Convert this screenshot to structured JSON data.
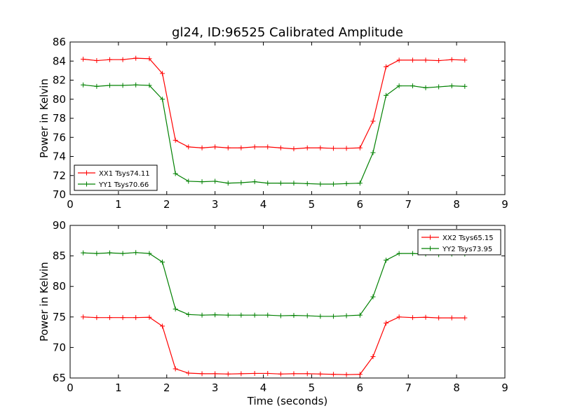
{
  "title": "gl24, ID:96525 Calibrated Amplitude",
  "colors": {
    "red_series": "#ff0000",
    "green_series": "#008000",
    "axes": "#000000"
  },
  "chart_data": [
    {
      "type": "line",
      "ylabel": "Power in Kelvin",
      "xlabel": "",
      "xlim": [
        0,
        9
      ],
      "ylim": [
        70,
        86
      ],
      "xticks": [
        0,
        1,
        2,
        3,
        4,
        5,
        6,
        7,
        8,
        9
      ],
      "yticks": [
        70,
        72,
        74,
        76,
        78,
        80,
        82,
        84,
        86
      ],
      "legend_position": "lower-left",
      "x": [
        0.27,
        0.55,
        0.82,
        1.09,
        1.36,
        1.64,
        1.91,
        2.18,
        2.45,
        2.73,
        3.0,
        3.27,
        3.54,
        3.82,
        4.09,
        4.36,
        4.63,
        4.91,
        5.18,
        5.45,
        5.72,
        6.0,
        6.27,
        6.54,
        6.81,
        7.09,
        7.36,
        7.63,
        7.9,
        8.17
      ],
      "series": [
        {
          "name": "XX1 Tsys74.11",
          "color": "#ff0000",
          "values": [
            84.2,
            84.05,
            84.15,
            84.15,
            84.3,
            84.25,
            82.7,
            75.7,
            75.0,
            74.9,
            75.0,
            74.9,
            74.9,
            75.0,
            75.0,
            74.9,
            74.8,
            74.9,
            74.9,
            74.85,
            74.85,
            74.9,
            77.7,
            83.4,
            84.1,
            84.1,
            84.1,
            84.05,
            84.15,
            84.1
          ]
        },
        {
          "name": "YY1 Tsys70.66",
          "color": "#008000",
          "values": [
            81.5,
            81.35,
            81.45,
            81.45,
            81.5,
            81.45,
            80.0,
            72.2,
            71.4,
            71.35,
            71.4,
            71.2,
            71.25,
            71.35,
            71.2,
            71.2,
            71.2,
            71.15,
            71.1,
            71.1,
            71.15,
            71.2,
            74.4,
            80.4,
            81.4,
            81.4,
            81.2,
            81.3,
            81.4,
            81.35
          ]
        }
      ]
    },
    {
      "type": "line",
      "ylabel": "Power in Kelvin",
      "xlabel": "Time (seconds)",
      "xlim": [
        0,
        9
      ],
      "ylim": [
        65,
        90
      ],
      "xticks": [
        0,
        1,
        2,
        3,
        4,
        5,
        6,
        7,
        8,
        9
      ],
      "yticks": [
        65,
        70,
        75,
        80,
        85,
        90
      ],
      "legend_position": "upper-right",
      "x": [
        0.27,
        0.55,
        0.82,
        1.09,
        1.36,
        1.64,
        1.91,
        2.18,
        2.45,
        2.73,
        3.0,
        3.27,
        3.54,
        3.82,
        4.09,
        4.36,
        4.63,
        4.91,
        5.18,
        5.45,
        5.72,
        6.0,
        6.27,
        6.54,
        6.81,
        7.09,
        7.36,
        7.63,
        7.9,
        8.17
      ],
      "series": [
        {
          "name": "XX2 Tsys65.15",
          "color": "#ff0000",
          "values": [
            75.0,
            74.9,
            74.9,
            74.9,
            74.9,
            74.95,
            73.5,
            66.5,
            65.8,
            65.7,
            65.7,
            65.65,
            65.7,
            65.75,
            65.75,
            65.65,
            65.7,
            65.7,
            65.65,
            65.6,
            65.55,
            65.6,
            68.5,
            74.0,
            75.0,
            74.9,
            74.95,
            74.85,
            74.85,
            74.85
          ]
        },
        {
          "name": "YY2 Tsys73.95",
          "color": "#008000",
          "values": [
            85.5,
            85.4,
            85.5,
            85.4,
            85.55,
            85.4,
            84.0,
            76.3,
            75.4,
            75.3,
            75.35,
            75.3,
            75.3,
            75.3,
            75.3,
            75.2,
            75.25,
            75.2,
            75.1,
            75.1,
            75.2,
            75.3,
            78.3,
            84.3,
            85.4,
            85.4,
            85.3,
            85.2,
            85.3,
            85.3
          ]
        }
      ]
    }
  ]
}
